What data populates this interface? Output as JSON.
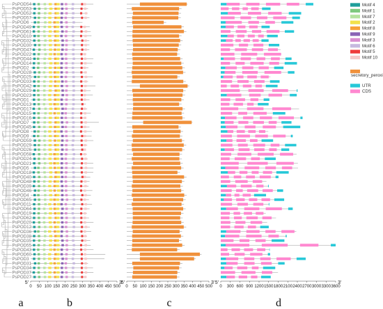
{
  "genes": [
    "PsPOD54",
    "PsPOD53",
    "PsPOD52",
    "PsPOD57",
    "PsPOD6",
    "PsPOD49",
    "PsPOD61",
    "PsPOD10",
    "PsPOD32",
    "PsPOD30",
    "PsPOD47",
    "PsPOD22",
    "PsPOD44",
    "PsPOD14",
    "PsPOD2",
    "PsPOD28",
    "PsPOD25",
    "PsPOD33",
    "PsPOD42",
    "PsPOD29",
    "PsPOD23",
    "PsPOD1",
    "PsPOD13",
    "PsPOD17",
    "PsPOD15",
    "PsPOD16",
    "PsPOD7",
    "PsPOD45",
    "PsPOD8",
    "PsPOD9",
    "PsPOD59",
    "PsPOD29",
    "PsPOD26",
    "PsPOD58",
    "PsPOD24",
    "PsPOD21",
    "PsPOD5",
    "PsPOD18",
    "PsPOD40",
    "PsPOD48",
    "PsPOD39",
    "PsPOD46",
    "PsPOD4",
    "PsPOD65",
    "PsPOD11",
    "PsPOD64",
    "PsPOD19",
    "PsPOD62",
    "PsPOD20",
    "PsPOD12",
    "PsPOD36",
    "PsPOD38",
    "PsPOD35",
    "PsPOD55",
    "PsPOD43",
    "PsPOD60",
    "PsPOD3",
    "PsPOD31",
    "PsPOD34",
    "PsPOD37",
    "PsPOD27"
  ],
  "panels": {
    "b": {
      "ticks": [
        "0",
        "50",
        "100",
        "150",
        "200",
        "250",
        "300",
        "350",
        "400",
        "450",
        "500"
      ],
      "start": "5'",
      "end": "3'",
      "max": 500
    },
    "c": {
      "ticks": [
        "0",
        "50",
        "100",
        "150",
        "200",
        "250",
        "300",
        "350",
        "400",
        "450",
        "500"
      ],
      "start": "5'",
      "end": "3'",
      "max": 500
    },
    "d": {
      "ticks": [
        "0",
        "300",
        "600",
        "900",
        "1200",
        "1500",
        "1800",
        "2100",
        "2400",
        "2700",
        "3000",
        "3300",
        "3600"
      ],
      "start": "5'",
      "end": "3'",
      "max": 3600
    }
  },
  "legend": {
    "motifs": [
      {
        "label": "Motif 4",
        "color": "#1f9e9a"
      },
      {
        "label": "Motif 1",
        "color": "#7fc97f"
      },
      {
        "label": "Motif 7",
        "color": "#b6e3a0"
      },
      {
        "label": "Motif 2",
        "color": "#f2e14b"
      },
      {
        "label": "Motif 8",
        "color": "#f7a13a"
      },
      {
        "label": "Motif 9",
        "color": "#8a63b5"
      },
      {
        "label": "Motif 3",
        "color": "#d98fd0"
      },
      {
        "label": "Motif 6",
        "color": "#c7b9df"
      },
      {
        "label": "Motif 5",
        "color": "#ee3b3b"
      },
      {
        "label": "Motif 10",
        "color": "#f6c9c9"
      }
    ],
    "domain": {
      "label": "secretory_peroxidase",
      "color": "#f0913c"
    },
    "structure": [
      {
        "label": "UTR",
        "color": "#27c8d8"
      },
      {
        "label": "CDS",
        "color": "#ff88d0"
      }
    ]
  },
  "panel_letters": [
    "a",
    "b",
    "c",
    "d"
  ]
}
